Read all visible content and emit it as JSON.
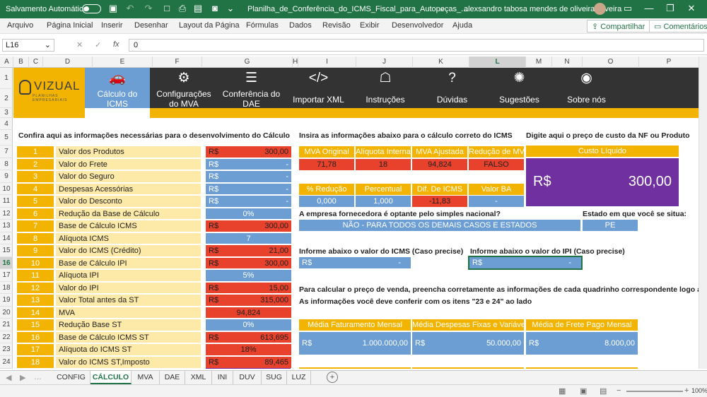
{
  "titlebar": {
    "autosave": "Salvamento Automático",
    "filename": "Planilha_de_Conferência_do_ICMS_Fiscal_para_Autopeças_...",
    "user": "alexsandro tabosa mendes de oliveira oliveira"
  },
  "menu": [
    "Arquivo",
    "Página Inicial",
    "Inserir",
    "Desenhar",
    "Layout da Página",
    "Fórmulas",
    "Dados",
    "Revisão",
    "Exibir",
    "Desenvolvedor",
    "Ajuda"
  ],
  "share": "Compartilhar",
  "comments": "Comentários",
  "formula": {
    "cell": "L16",
    "fx": "fx",
    "value": "0"
  },
  "columns": [
    "A",
    "B",
    "C",
    "D",
    "E",
    "F",
    "G",
    "H",
    "I",
    "J",
    "K",
    "L",
    "M",
    "N",
    "O",
    "P"
  ],
  "rows": [
    "1",
    "2",
    "3",
    "4",
    "5",
    "7",
    "8",
    "9",
    "10",
    "11",
    "12",
    "13",
    "14",
    "15",
    "16",
    "17",
    "18",
    "19",
    "20",
    "21",
    "22",
    "23",
    "24"
  ],
  "logo": {
    "word": "VIZUAL",
    "tagline": "PLANILHAS EMPRESARIAIS"
  },
  "nav": [
    {
      "icon": "car-icon",
      "glyph": "🚗",
      "l1": "Cálculo do",
      "l2": "ICMS"
    },
    {
      "icon": "gear-icon",
      "glyph": "⚙",
      "l1": "Configurações",
      "l2": "do MVA"
    },
    {
      "icon": "checklist-icon",
      "glyph": "☰",
      "l1": "Conferência do",
      "l2": "DAE"
    },
    {
      "icon": "code-icon",
      "glyph": "</>",
      "l1": "Importar XML",
      "l2": ""
    },
    {
      "icon": "presentation-icon",
      "glyph": "☖",
      "l1": "Instruções",
      "l2": ""
    },
    {
      "icon": "question-icon",
      "glyph": "?",
      "l1": "Dúvidas",
      "l2": ""
    },
    {
      "icon": "lightbulb-icon",
      "glyph": "✺",
      "l1": "Sugestões",
      "l2": ""
    },
    {
      "icon": "owl-icon",
      "glyph": "◉",
      "l1": "Sobre nós",
      "l2": ""
    }
  ],
  "left": {
    "heading": "Confira aqui as informações necessárias para o desenvolvimento do Cálculo",
    "items": [
      {
        "n": "1",
        "label": "Valor dos Produtos",
        "cur": "R$",
        "val": "300,00",
        "style": "red"
      },
      {
        "n": "2",
        "label": "Valor do Frete",
        "cur": "R$",
        "val": "-",
        "style": "blu"
      },
      {
        "n": "3",
        "label": "Valor do Seguro",
        "cur": "R$",
        "val": "-",
        "style": "blu"
      },
      {
        "n": "4",
        "label": "Despesas Acessórias",
        "cur": "R$",
        "val": "-",
        "style": "blu"
      },
      {
        "n": "5",
        "label": "Valor do Desconto",
        "cur": "R$",
        "val": "-",
        "style": "blu"
      },
      {
        "n": "6",
        "label": "Redução da Base de Cálculo",
        "cur": "",
        "val": "0%",
        "style": "bluc"
      },
      {
        "n": "7",
        "label": "Base de Cálculo ICMS",
        "cur": "R$",
        "val": "300,00",
        "style": "red"
      },
      {
        "n": "8",
        "label": "Alíquota ICMS",
        "cur": "",
        "val": "7",
        "style": "bluc"
      },
      {
        "n": "9",
        "label": "Valor do ICMS (Crédito)",
        "cur": "R$",
        "val": "21,00",
        "style": "red"
      },
      {
        "n": "10",
        "label": "Base de Cálculo IPI",
        "cur": "R$",
        "val": "300,00",
        "style": "red"
      },
      {
        "n": "11",
        "label": "Alíquota IPI",
        "cur": "",
        "val": "5%",
        "style": "bluc"
      },
      {
        "n": "12",
        "label": "Valor do IPI",
        "cur": "R$",
        "val": "15,00",
        "style": "red"
      },
      {
        "n": "13",
        "label": "Valor Total antes da ST",
        "cur": "R$",
        "val": "315,000",
        "style": "red"
      },
      {
        "n": "14",
        "label": "MVA",
        "cur": "",
        "val": "94,824",
        "style": "redc"
      },
      {
        "n": "15",
        "label": "Redução Base ST",
        "cur": "",
        "val": "0%",
        "style": "bluc"
      },
      {
        "n": "16",
        "label": "Base de Cálculo ICMS ST",
        "cur": "R$",
        "val": "613,695",
        "style": "red"
      },
      {
        "n": "17",
        "label": "Alíquota do ICMS ST",
        "cur": "",
        "val": "18%",
        "style": "redc"
      },
      {
        "n": "18",
        "label": "Valor do ICMS ST,Imposto",
        "cur": "R$",
        "val": "89,465",
        "style": "red"
      }
    ]
  },
  "mid": {
    "heading": "Insira as informações abaixo para o cálculo correto do ICMS",
    "h1": [
      "MVA Original",
      "Alíquota Interna",
      "MVA Ajustada",
      "Redução de MVA"
    ],
    "v1": [
      "71,78",
      "18",
      "94,824",
      "FALSO"
    ],
    "h2": [
      "% Redução",
      "Percentual",
      "Dif. De ICMS",
      "Valor BA"
    ],
    "v2": [
      "0,000",
      "1,000",
      "-11,83",
      "-"
    ],
    "simples_q": "A empresa fornecedora é optante pelo simples nacional?",
    "simples_v": "NÃO - PARA TODOS OS DEMAIS CASOS E ESTADOS",
    "estado_q": "Estado em que você se situa:",
    "estado_v": "PE",
    "icms_q": "Informe abaixo o valor do ICMS (Caso precise)",
    "icms_cur": "R$",
    "icms_v": "-",
    "ipi_q": "Informe abaixo o valor do IPI (Caso precise)",
    "ipi_cur": "R$",
    "ipi_v": "-",
    "venda1": "Para calcular o preço de venda, preencha corretamente as informações de cada quadrinho correspondente logo abaixo:",
    "venda2": "As informações você deve conferir com os itens \"23 e 24\" ao lado",
    "fh": [
      "Média Faturamento Mensal",
      "Média Despesas Fixas e Variáveis",
      "Média de Frete Pago Mensal"
    ],
    "fv": [
      "1.000.000,00",
      "50.000,00",
      "8.000,00"
    ],
    "fcur": "R$"
  },
  "right": {
    "heading": "Digite aqui o preço de custo da NF ou Produto",
    "label": "Custo Líquido",
    "cur": "R$",
    "value": "300,00"
  },
  "tabs": [
    "CONFIG",
    "CÁLCULO",
    "MVA",
    "DAE",
    "XML",
    "INI",
    "DUV",
    "SUG",
    "LUZ"
  ],
  "zoom": "100%"
}
